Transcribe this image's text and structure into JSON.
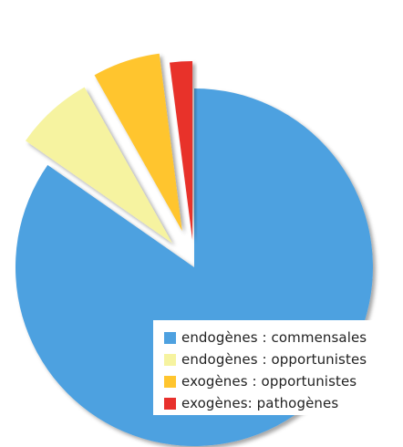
{
  "chart_data": {
    "type": "pie",
    "title": "",
    "exploded": true,
    "legend_position": "bottom-right",
    "series": [
      {
        "categories": [
          "endogènes : commensales",
          "endogènes : opportunistes",
          "exogènes : opportunistes",
          "exogènes: pathogènes"
        ],
        "values": [
          83,
          7,
          6,
          2
        ],
        "colors": [
          "#4ea1e0",
          "#f6f3a0",
          "#ffc52e",
          "#e8302c"
        ]
      }
    ]
  }
}
